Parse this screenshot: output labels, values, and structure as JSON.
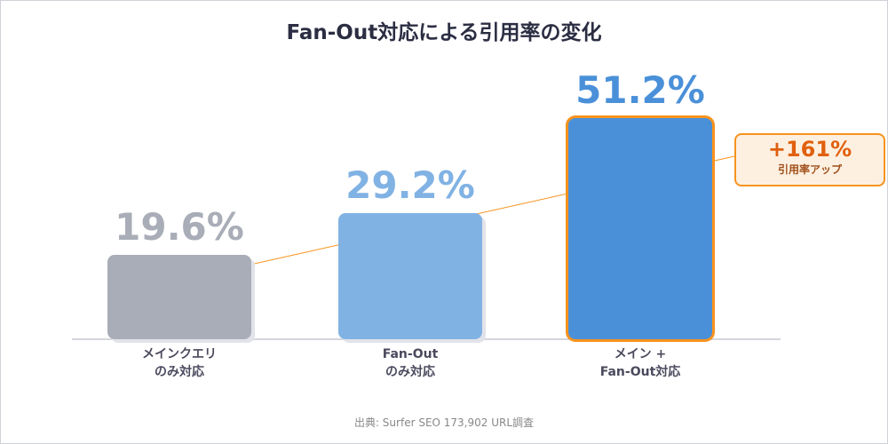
{
  "chart_data": {
    "type": "bar",
    "title": "Fan-Out対応による引用率の変化",
    "categories": [
      [
        "メインクエリ",
        "のみ対応"
      ],
      [
        "Fan-Out",
        "のみ対応"
      ],
      [
        "メイン +",
        "Fan-Out対応"
      ]
    ],
    "values": [
      19.6,
      29.2,
      51.2
    ],
    "value_labels": [
      "19.6%",
      "29.2%",
      "51.2%"
    ],
    "colors": [
      "#a9adb7",
      "#81b2e4",
      "#4a90d9"
    ],
    "highlight_index": 2,
    "highlight_color": "#f7931e",
    "ylim": [
      0,
      51.2
    ],
    "grid": false,
    "annotation": {
      "value": "+161%",
      "label": "引用率アップ",
      "color": "#e0600e"
    },
    "source": "出典: Surfer SEO 173,902 URL調査"
  }
}
